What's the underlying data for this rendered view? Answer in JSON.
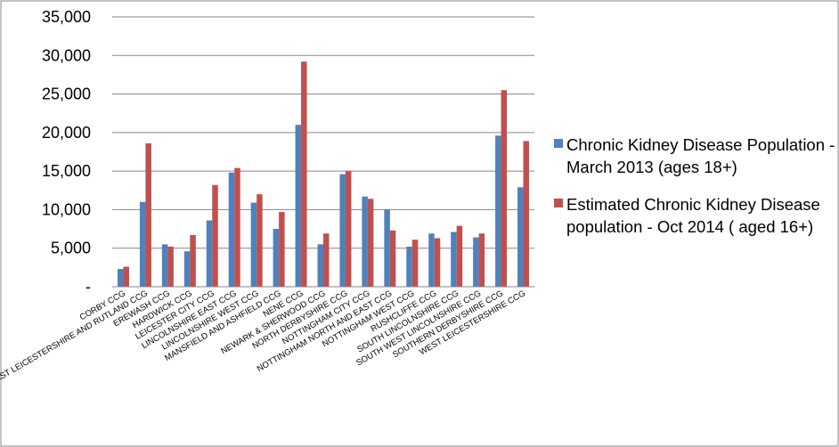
{
  "chart_data": {
    "type": "bar",
    "categories": [
      "CORBY CCG",
      "EAST LEICESTERSHIRE AND RUTLAND CCG",
      "EREWASH CCG",
      "HARDWICK CCG",
      "LEICESTER CITY CCG",
      "LINCOLNSHIRE EAST CCG",
      "LINCOLNSHIRE WEST CCG",
      "MANSFIELD AND ASHFIELD CCG",
      "NENE CCG",
      "NEWARK & SHERWOOD CCG",
      "NORTH DERBYSHIRE CCG",
      "NOTTINGHAM CITY CCG",
      "NOTTINGHAM NORTH AND EAST CCG",
      "NOTTINGHAM WEST CCG",
      "RUSHCLIFFE CCG",
      "SOUTH LINCOLNSHIRE CCG",
      "SOUTH WEST LINCOLNSHIRE CCG",
      "SOUTHERN DERBYSHIRE CCG",
      "WEST LEICESTERSHIRE CCG"
    ],
    "series": [
      {
        "name": "Chronic Kidney Disease Population - March 2013 (ages 18+)",
        "color": "#4F81BD",
        "values": [
          2300,
          11000,
          5500,
          4600,
          8600,
          14800,
          10900,
          7500,
          21000,
          5500,
          14600,
          11700,
          10000,
          5200,
          6900,
          7100,
          6400,
          19600,
          12900
        ]
      },
      {
        "name": "Estimated Chronic Kidney Disease population - Oct 2014 ( aged 16+)",
        "color": "#C0504D",
        "values": [
          2600,
          18600,
          5200,
          6700,
          13200,
          15400,
          12000,
          9700,
          29200,
          6900,
          15000,
          11400,
          7300,
          6100,
          6300,
          7900,
          6900,
          25500,
          18900
        ]
      }
    ],
    "yticks": [
      "-",
      "5,000",
      "10,000",
      "15,000",
      "20,000",
      "25,000",
      "30,000",
      "35,000"
    ],
    "ylim": [
      0,
      35000
    ],
    "ystep": 5000,
    "grid": true,
    "legend_position": "right"
  }
}
